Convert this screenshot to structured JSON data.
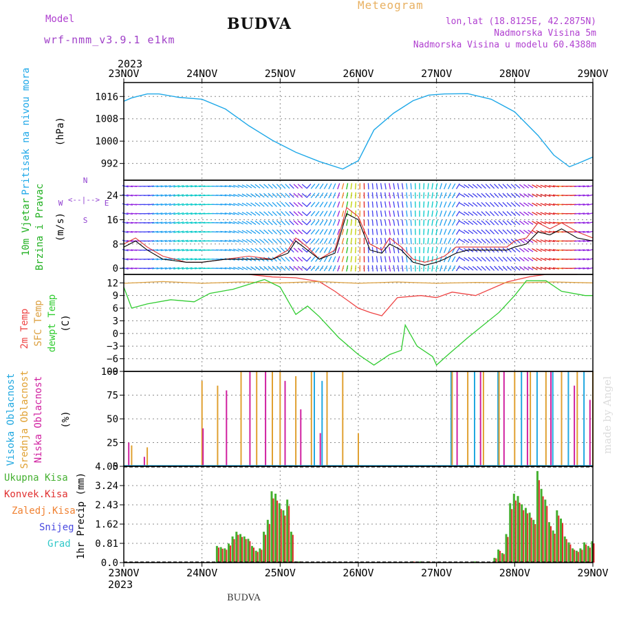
{
  "header": {
    "model_label": "Model",
    "model_name": "wrf-nmm_v3.9.1 e1km",
    "station": "BUDVA",
    "meteogram_label": "Meteogram",
    "lonlat": "lon,lat (18.8125E, 42.2875N)",
    "altitude": "Nadmorska Visina 5m",
    "model_altitude": "Nadmorska Visina u modelu 60.4388m"
  },
  "footer": {
    "station": "BUDVA",
    "watermark": "made by Angel"
  },
  "time_axis": {
    "year": "2023",
    "labels": [
      "23NOV",
      "24NOV",
      "25NOV",
      "26NOV",
      "27NOV",
      "28NOV",
      "29NOV"
    ]
  },
  "colors": {
    "pressure": "#1ea8e8",
    "wind_speed": "#000000",
    "gust": "#e03030",
    "temp2m": "#ee4444",
    "sfc_temp": "#dca040",
    "dewpoint": "#30cc30",
    "high_cloud": "#20a8e0",
    "mid_cloud": "#e0a030",
    "low_cloud": "#d020a0",
    "total_precip": "#44b030",
    "conv_precip": "#e03030"
  },
  "chart_data": [
    {
      "type": "line",
      "panel": "pressure",
      "ylabel_lines": [
        "Pritisak na nivou mora",
        "(hPa)"
      ],
      "yticks": [
        1016,
        1008,
        1000,
        992
      ],
      "ylim": [
        986,
        1021
      ],
      "grid": true,
      "series": [
        {
          "x": [
            0,
            0.1,
            0.3,
            0.45,
            0.7,
            1.0,
            1.3,
            1.6,
            1.9,
            2.2,
            2.5,
            2.8,
            3.0,
            3.2,
            3.45,
            3.7,
            3.9,
            4.1,
            4.4,
            4.7,
            5.0,
            5.3,
            5.5,
            5.7,
            5.85,
            6.0
          ],
          "y": [
            1014.3,
            1015.5,
            1016.9,
            1016.9,
            1015.7,
            1015.0,
            1011.5,
            1005.5,
            1000.3,
            996.0,
            992.7,
            990.0,
            993.0,
            1004.0,
            1010.0,
            1014.5,
            1016.5,
            1016.9,
            1017.0,
            1015.0,
            1010.5,
            1002.0,
            995.0,
            990.8,
            992.5,
            994.3
          ]
        }
      ]
    },
    {
      "type": "line",
      "panel": "wind",
      "ylabel_lines": [
        "10m Vjetar",
        "Brzina i Pravac",
        "(m/s)"
      ],
      "compass": {
        "n": "N",
        "s": "S",
        "e": "E",
        "w": "W",
        "arrows": "<--|-->"
      },
      "yticks": [
        0,
        8,
        16,
        24
      ],
      "ylim": [
        -2,
        29
      ],
      "grid": true,
      "series": [
        {
          "name": "speed",
          "x": [
            0,
            0.15,
            0.3,
            0.5,
            0.8,
            1.0,
            1.3,
            1.6,
            1.9,
            2.1,
            2.2,
            2.35,
            2.5,
            2.7,
            2.85,
            3.0,
            3.15,
            3.3,
            3.4,
            3.55,
            3.7,
            3.85,
            4.0,
            4.1,
            4.25,
            4.4,
            4.6,
            4.9,
            5.0,
            5.15,
            5.3,
            5.45,
            5.6,
            5.8,
            6.0
          ],
          "y": [
            7,
            9,
            6,
            3,
            2,
            2,
            3,
            3,
            3,
            5,
            9,
            6,
            3,
            5,
            18,
            16,
            6,
            5,
            8,
            6,
            2,
            1,
            2,
            3,
            5,
            6,
            6,
            6,
            7,
            8,
            12,
            11,
            13,
            10,
            9
          ]
        },
        {
          "name": "gust",
          "x": [
            0,
            0.15,
            0.3,
            0.5,
            0.8,
            1.0,
            1.3,
            1.6,
            1.9,
            2.1,
            2.2,
            2.35,
            2.5,
            2.7,
            2.85,
            3.0,
            3.15,
            3.3,
            3.4,
            3.55,
            3.7,
            3.85,
            4.0,
            4.1,
            4.25,
            4.4,
            4.6,
            4.9,
            5.0,
            5.15,
            5.3,
            5.45,
            5.6,
            5.8,
            6.0
          ],
          "y": [
            8,
            10,
            7,
            4,
            2,
            2,
            3,
            4,
            3,
            6,
            10,
            7,
            3,
            6,
            20,
            17,
            8,
            6,
            10,
            7,
            3,
            2,
            3,
            4,
            7,
            7,
            7,
            7,
            9,
            10,
            15,
            13,
            15,
            12,
            10
          ]
        }
      ]
    },
    {
      "type": "line",
      "panel": "temperature",
      "ylabel_lines": [
        "2m Temp",
        "SFC Temp",
        "dewpt Temp",
        "(C)"
      ],
      "yticks": [
        12,
        9,
        6,
        3,
        0,
        -3,
        -6,
        -9
      ],
      "ytick_labels": [
        "12",
        "9",
        "6",
        "3",
        "0",
        "−3",
        "−6",
        "−9"
      ],
      "ylim": [
        -9,
        14
      ],
      "grid": true,
      "series": [
        {
          "name": "2m Temp",
          "x": [
            1.6,
            1.9,
            2.2,
            2.5,
            2.7,
            3.0,
            3.15,
            3.3,
            3.5,
            3.8,
            4.0,
            4.2,
            4.5,
            4.9,
            5.2,
            5.4,
            5.6,
            5.8
          ],
          "y": [
            14,
            13.4,
            13.2,
            12.3,
            10,
            6,
            5,
            4.2,
            8.5,
            9,
            8.5,
            9.8,
            9,
            12.2,
            13.5,
            14,
            14,
            14
          ]
        },
        {
          "name": "SFC Temp",
          "x": [
            0,
            0.5,
            1.0,
            1.5,
            2.0,
            2.5,
            3.0,
            3.5,
            4.0,
            4.5,
            5.0,
            5.5,
            6.0
          ],
          "y": [
            11.9,
            12.3,
            11.9,
            12.2,
            12.0,
            12.3,
            11.9,
            12.2,
            11.9,
            12.1,
            12.0,
            12.2,
            12.0
          ]
        },
        {
          "name": "dewpt Temp",
          "x": [
            0,
            0.1,
            0.3,
            0.6,
            0.9,
            1.1,
            1.4,
            1.8,
            2.0,
            2.2,
            2.35,
            2.5,
            2.75,
            3.0,
            3.2,
            3.4,
            3.55,
            3.6,
            3.75,
            3.95,
            4.0,
            4.15,
            4.4,
            4.8,
            5.0,
            5.15,
            5.4,
            5.6,
            5.9,
            6.0
          ],
          "y": [
            11,
            6,
            7,
            8,
            7.5,
            9.5,
            10.5,
            12.8,
            11,
            4.5,
            6.5,
            4,
            -1,
            -5,
            -7.5,
            -5,
            -4,
            2,
            -3,
            -5.5,
            -7.5,
            -5,
            -1,
            5,
            9,
            12.5,
            12.5,
            10,
            9,
            9
          ]
        }
      ]
    },
    {
      "type": "bar",
      "panel": "cloud",
      "ylabel_lines": [
        "Visoka Oblacnost",
        "Srednja Oblacnost",
        "Niska Oblacnost",
        "(%)"
      ],
      "yticks": [
        0,
        25,
        50,
        75,
        100
      ],
      "ylim": [
        0,
        100
      ],
      "grid": true,
      "series": [
        {
          "name": "Visoka Oblacnost",
          "x": [
            2.45,
            2.55,
            4.2,
            4.5,
            4.8,
            5.1,
            5.3,
            5.5,
            5.7,
            5.9
          ],
          "values": [
            100,
            90,
            100,
            100,
            100,
            100,
            100,
            100,
            100,
            100
          ]
        },
        {
          "name": "Srednja Oblacnost",
          "x": [
            0.1,
            0.3,
            1.0,
            1.2,
            1.5,
            1.7,
            1.9,
            2.0,
            2.2,
            2.4,
            2.6,
            2.8,
            3.0,
            4.2,
            4.4,
            4.6,
            4.8,
            5.0,
            5.2,
            5.4,
            5.6,
            5.8,
            6.0
          ],
          "values": [
            22,
            20,
            90,
            85,
            100,
            100,
            100,
            100,
            95,
            100,
            100,
            100,
            35,
            100,
            100,
            100,
            100,
            100,
            100,
            100,
            100,
            100,
            100
          ]
        },
        {
          "name": "Niska Oblacnost",
          "x": [
            0.05,
            0.25,
            1.0,
            1.3,
            1.6,
            1.8,
            2.05,
            2.25,
            2.5,
            4.25,
            4.55,
            4.85,
            5.15,
            5.45,
            5.75,
            5.95
          ],
          "values": [
            25,
            10,
            40,
            80,
            100,
            100,
            90,
            60,
            35,
            100,
            100,
            100,
            100,
            100,
            85,
            70
          ]
        }
      ]
    },
    {
      "type": "bar",
      "panel": "precip",
      "ylabel_lines": [
        "1hr Precip (mm)"
      ],
      "legend": [
        "Ukupna Kisa",
        "Konvek.Kisa",
        "Zaledj.Kisa",
        "Snijeg",
        "Grad"
      ],
      "legend_colors": [
        "#44b030",
        "#e03030",
        "#f08030",
        "#4848e0",
        "#30c8c8"
      ],
      "yticks": [
        0,
        0.81,
        1.62,
        2.43,
        3.24,
        4.05
      ],
      "ylim": [
        0,
        4.05
      ],
      "grid": true,
      "x": [
        1.2,
        1.25,
        1.3,
        1.35,
        1.4,
        1.45,
        1.5,
        1.55,
        1.6,
        1.65,
        1.7,
        1.75,
        1.8,
        1.85,
        1.9,
        1.95,
        2.0,
        2.05,
        2.1,
        2.15,
        2.2,
        2.25,
        3.7,
        3.8,
        3.9,
        4.5,
        4.75,
        4.8,
        4.85,
        4.9,
        4.95,
        5.0,
        5.05,
        5.1,
        5.15,
        5.2,
        5.25,
        5.3,
        5.35,
        5.4,
        5.45,
        5.5,
        5.55,
        5.6,
        5.65,
        5.7,
        5.75,
        5.8,
        5.85,
        5.9,
        5.95,
        6.0
      ],
      "total": [
        0.7,
        0.65,
        0.6,
        0.8,
        1.1,
        1.3,
        1.2,
        1.1,
        1.0,
        0.7,
        0.5,
        0.6,
        1.3,
        1.8,
        3.0,
        2.9,
        2.5,
        2.2,
        2.65,
        1.3,
        0.05,
        0.05,
        0.05,
        0.05,
        0.05,
        0.05,
        0.2,
        0.55,
        0.4,
        1.2,
        2.5,
        2.9,
        2.8,
        2.45,
        2.3,
        2.1,
        1.8,
        3.85,
        3.1,
        2.65,
        1.7,
        1.35,
        2.2,
        1.85,
        1.1,
        0.85,
        0.6,
        0.5,
        0.6,
        0.85,
        0.7,
        0.9
      ]
    }
  ]
}
